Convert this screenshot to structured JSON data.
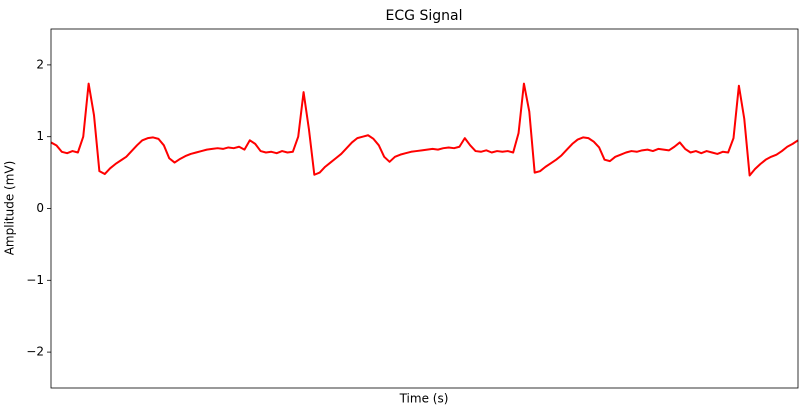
{
  "chart_data": {
    "type": "line",
    "title": "ECG Signal",
    "xlabel": "Time (s)",
    "ylabel": "Amplitude (mV)",
    "color": "#ff0000",
    "values": [
      0.92,
      0.88,
      0.79,
      0.77,
      0.8,
      0.78,
      1.0,
      1.74,
      1.3,
      0.52,
      0.48,
      0.56,
      0.62,
      0.67,
      0.72,
      0.8,
      0.88,
      0.95,
      0.98,
      0.99,
      0.97,
      0.88,
      0.7,
      0.64,
      0.69,
      0.73,
      0.76,
      0.78,
      0.8,
      0.82,
      0.83,
      0.84,
      0.83,
      0.85,
      0.84,
      0.86,
      0.82,
      0.95,
      0.9,
      0.8,
      0.78,
      0.79,
      0.77,
      0.8,
      0.78,
      0.79,
      1.0,
      1.62,
      1.1,
      0.47,
      0.5,
      0.58,
      0.64,
      0.7,
      0.76,
      0.84,
      0.92,
      0.98,
      1.0,
      1.02,
      0.97,
      0.88,
      0.72,
      0.65,
      0.72,
      0.75,
      0.77,
      0.79,
      0.8,
      0.81,
      0.82,
      0.83,
      0.82,
      0.84,
      0.85,
      0.84,
      0.86,
      0.98,
      0.88,
      0.8,
      0.79,
      0.81,
      0.78,
      0.8,
      0.79,
      0.8,
      0.78,
      1.05,
      1.74,
      1.35,
      0.5,
      0.52,
      0.58,
      0.63,
      0.68,
      0.74,
      0.82,
      0.9,
      0.96,
      0.99,
      0.98,
      0.93,
      0.85,
      0.68,
      0.66,
      0.72,
      0.75,
      0.78,
      0.8,
      0.79,
      0.81,
      0.82,
      0.8,
      0.83,
      0.82,
      0.81,
      0.86,
      0.92,
      0.83,
      0.78,
      0.8,
      0.77,
      0.8,
      0.78,
      0.76,
      0.79,
      0.78,
      0.98,
      1.71,
      1.25,
      0.46,
      0.55,
      0.62,
      0.68,
      0.72,
      0.75,
      0.8,
      0.86,
      0.9,
      0.95
    ],
    "ylim": [
      -2.5,
      2.5
    ],
    "yticks": [
      {
        "value": -2,
        "label": "−2"
      },
      {
        "value": -1,
        "label": "−1"
      },
      0,
      1,
      2
    ],
    "grid": false
  }
}
